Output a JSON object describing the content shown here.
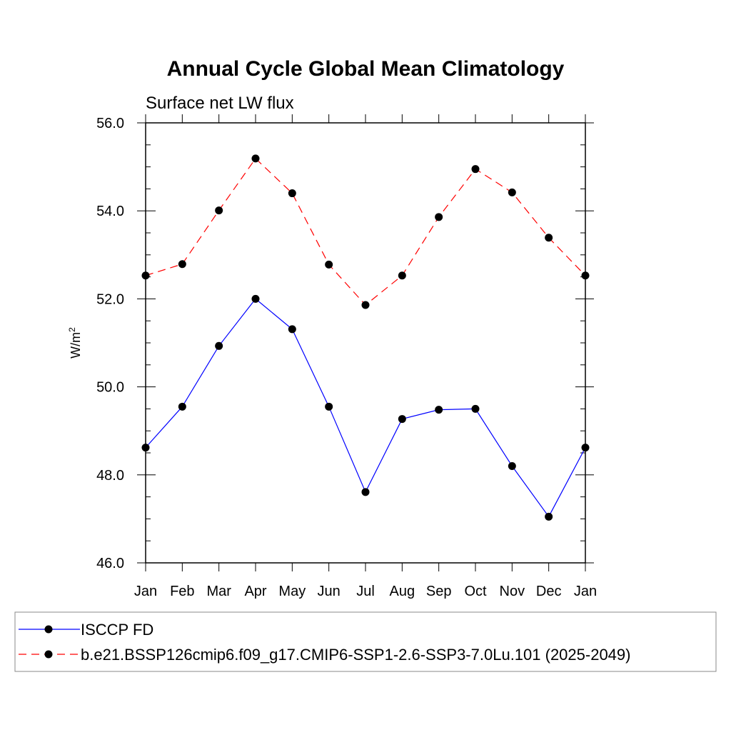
{
  "chart_data": {
    "type": "line",
    "title": "Annual Cycle Global Mean Climatology",
    "subtitle": "Surface net LW flux",
    "ylabel": "W/m",
    "ylabel_sup": "2",
    "xlabel": "",
    "ylim": [
      46.0,
      56.0
    ],
    "yticks": [
      46.0,
      48.0,
      50.0,
      52.0,
      54.0,
      56.0
    ],
    "ytick_labels": [
      "46.0",
      "48.0",
      "50.0",
      "52.0",
      "54.0",
      "56.0"
    ],
    "categories": [
      "Jan",
      "Feb",
      "Mar",
      "Apr",
      "May",
      "Jun",
      "Jul",
      "Aug",
      "Sep",
      "Oct",
      "Nov",
      "Dec",
      "Jan"
    ],
    "grid": false,
    "legend_position": "bottom",
    "series": [
      {
        "name": "ISCCP FD",
        "color": "#0000ff",
        "dash": "solid",
        "values": [
          48.62,
          49.55,
          50.93,
          52.0,
          51.31,
          49.55,
          47.61,
          49.27,
          49.48,
          49.5,
          48.2,
          47.05,
          48.62
        ]
      },
      {
        "name": "b.e21.BSSP126cmip6.f09_g17.CMIP6-SSP1-2.6-SSP3-7.0Lu.101 (2025-2049)",
        "color": "#ff0000",
        "dash": "dashed",
        "values": [
          52.53,
          52.79,
          54.01,
          55.19,
          54.4,
          52.78,
          51.86,
          52.53,
          53.86,
          54.95,
          54.42,
          53.39,
          52.53
        ]
      }
    ]
  }
}
